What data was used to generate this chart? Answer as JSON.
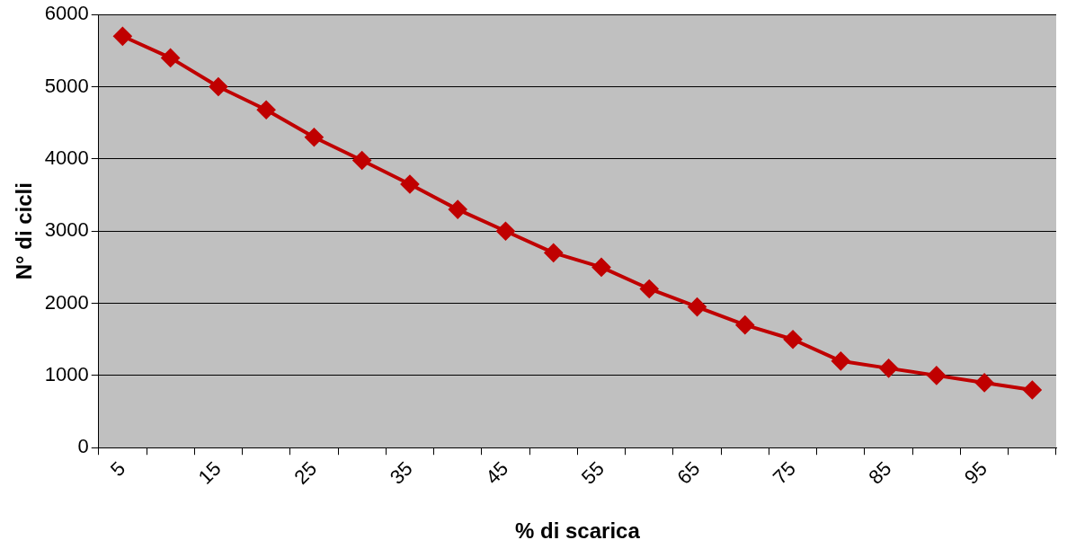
{
  "chart_data": {
    "type": "line",
    "xlabel": "% di scarica",
    "ylabel": "N° di cicli",
    "categories": [
      "5",
      null,
      "15",
      null,
      "25",
      null,
      "35",
      null,
      "45",
      null,
      "55",
      null,
      "65",
      null,
      "75",
      null,
      "85",
      null,
      "95",
      null
    ],
    "series": [
      {
        "color": "#c00000",
        "values": [
          5700,
          5400,
          5000,
          4680,
          4300,
          3980,
          3650,
          3300,
          3000,
          2700,
          2500,
          2200,
          1950,
          1700,
          1500,
          1200,
          1100,
          1000,
          900,
          800
        ]
      }
    ],
    "ylim": [
      0,
      6000
    ],
    "yticks": [
      0,
      1000,
      2000,
      3000,
      4000,
      5000,
      6000
    ],
    "grid": "y",
    "legend": false,
    "marker": "diamond",
    "line_style": "solid"
  }
}
